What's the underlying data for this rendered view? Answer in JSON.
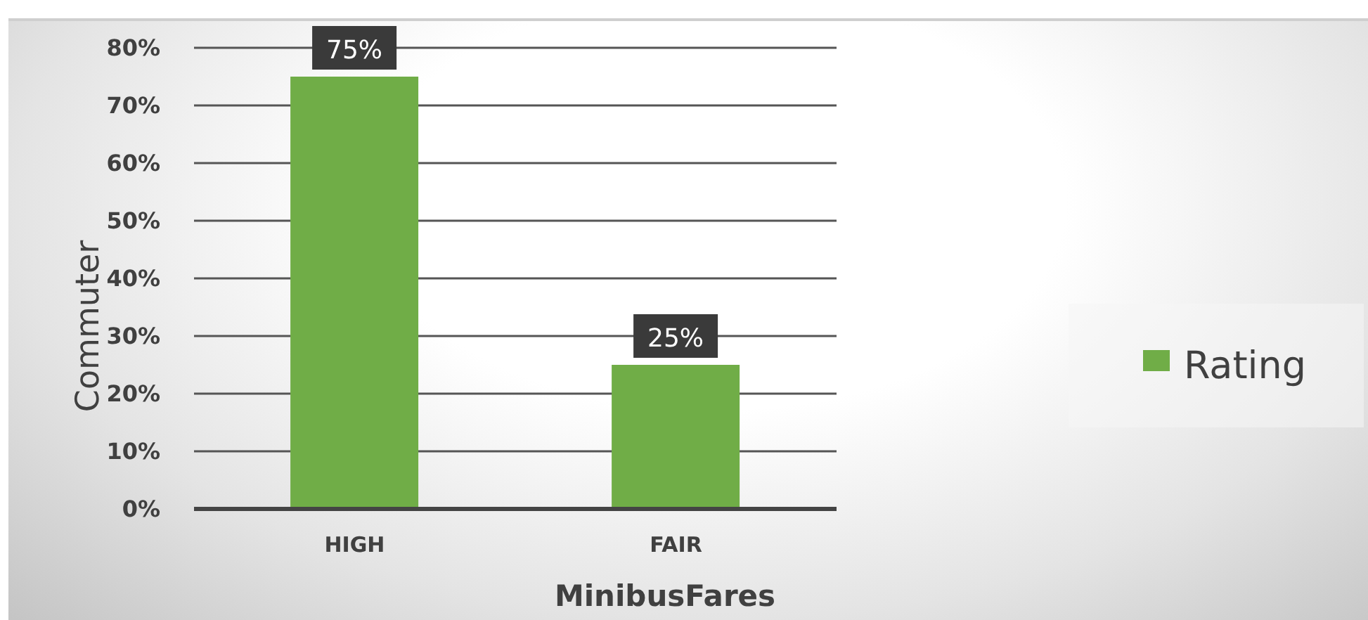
{
  "chart_data": {
    "type": "bar",
    "xlabel": "MinibusFares",
    "ylabel": "Commuter",
    "categories": [
      "HIGH",
      "FAIR"
    ],
    "series": [
      {
        "name": "Rating",
        "color": "#70ad47",
        "values": [
          75,
          25
        ],
        "value_labels": [
          "75%",
          "25%"
        ]
      }
    ],
    "ylim": [
      0,
      80
    ],
    "yticks": [
      {
        "value": 0,
        "label": "0%"
      },
      {
        "value": 10,
        "label": "10%"
      },
      {
        "value": 20,
        "label": "20%"
      },
      {
        "value": 30,
        "label": "30%"
      },
      {
        "value": 40,
        "label": "40%"
      },
      {
        "value": 50,
        "label": "50%"
      },
      {
        "value": 60,
        "label": "60%"
      },
      {
        "value": 70,
        "label": "70%"
      },
      {
        "value": 80,
        "label": "80%"
      }
    ],
    "grid": "y",
    "legend": "right"
  }
}
